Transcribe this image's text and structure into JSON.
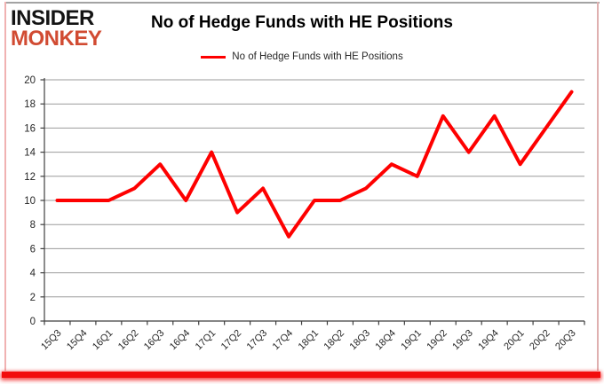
{
  "logo": {
    "line1": "INSIDER",
    "line2": "MONKEY"
  },
  "header": {
    "title": "No of Hedge Funds with HE Positions"
  },
  "legend": {
    "label": "No of Hedge Funds with HE Positions"
  },
  "chart_data": {
    "type": "line",
    "title": "No of Hedge Funds with HE Positions",
    "categories": [
      "15Q3",
      "15Q4",
      "16Q1",
      "16Q2",
      "16Q3",
      "16Q4",
      "17Q1",
      "17Q2",
      "17Q3",
      "17Q4",
      "18Q1",
      "18Q2",
      "18Q3",
      "18Q4",
      "19Q1",
      "19Q2",
      "19Q3",
      "19Q4",
      "20Q1",
      "20Q2",
      "20Q3"
    ],
    "series": [
      {
        "name": "No of Hedge Funds with HE Positions",
        "values": [
          10,
          10,
          10,
          11,
          13,
          10,
          14,
          9,
          11,
          7,
          10,
          10,
          11,
          13,
          12,
          17,
          14,
          17,
          13,
          16,
          19
        ]
      }
    ],
    "xlabel": "",
    "ylabel": "",
    "ylim": [
      0,
      20
    ],
    "ytick_step": 2,
    "grid": true,
    "legend_position": "top",
    "line_color": "#fe0000"
  },
  "colors": {
    "series_red": "#fe0000",
    "logo_red": "#d14b32",
    "grid": "#9b9b9b",
    "axis": "#3f3f3f",
    "tick_text": "#262626",
    "bottom_bar_red": "#f20d0d"
  }
}
